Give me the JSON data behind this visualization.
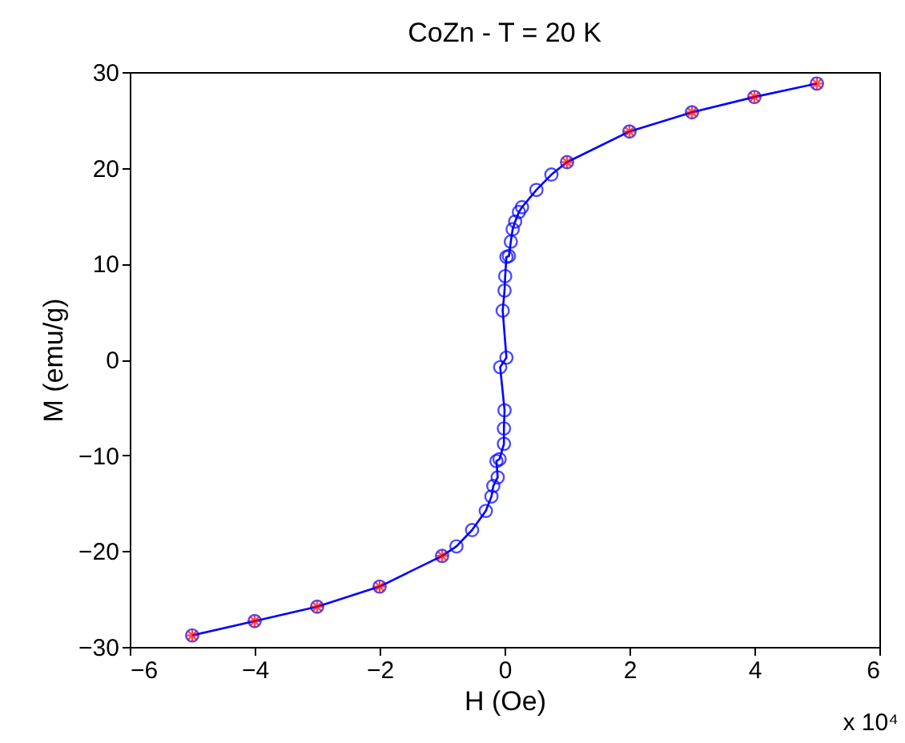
{
  "chart_data": {
    "type": "line",
    "title": "CoZn - T = 20 K",
    "xlabel": "H (Oe)",
    "ylabel": "M (emu/g)",
    "annotations": [
      "x 10⁴"
    ],
    "xlim": [
      -6,
      6
    ],
    "ylim": [
      -30,
      30
    ],
    "xticks": [
      -6,
      -4,
      -2,
      0,
      2,
      4,
      6
    ],
    "yticks": [
      -30,
      -20,
      -10,
      0,
      10,
      20,
      30
    ],
    "grid": false,
    "series": [
      {
        "color": "#0000ff",
        "marker": "circle",
        "line_style": "solid",
        "x": [
          5,
          4,
          3,
          2,
          1,
          0.75,
          0.51,
          0.28,
          0.23,
          0.17,
          0.13,
          0.1,
          0.07,
          0.03,
          0.01,
          0,
          -0.03,
          0.03,
          -0.07,
          0,
          -0.01,
          -0.01,
          -0.08,
          -0.13,
          -0.11,
          -0.18,
          -0.21,
          -0.3,
          -0.52,
          -0.77,
          -1,
          -2,
          -3,
          -4,
          -5
        ],
        "values": [
          28.8,
          27.4,
          25.8,
          23.8,
          20.6,
          19.3,
          17.7,
          15.9,
          15.4,
          14.4,
          13.6,
          12.3,
          10.8,
          10.7,
          8.7,
          7.2,
          5.1,
          0.2,
          -0.8,
          -5.3,
          -7.2,
          -8.8,
          -10.4,
          -10.6,
          -12.3,
          -13.2,
          -14.3,
          -15.8,
          -17.8,
          -19.5,
          -20.5,
          -23.7,
          -25.8,
          -27.3,
          -28.8
        ]
      },
      {
        "type": "scatter",
        "color": "#ff0000",
        "marker": "cross",
        "x": [
          5,
          4,
          3,
          2,
          1,
          -1,
          -2,
          -3,
          -4,
          -5
        ],
        "values": [
          28.8,
          27.4,
          25.8,
          23.8,
          20.6,
          -20.5,
          -23.7,
          -25.8,
          -27.3,
          -28.8
        ]
      }
    ]
  }
}
